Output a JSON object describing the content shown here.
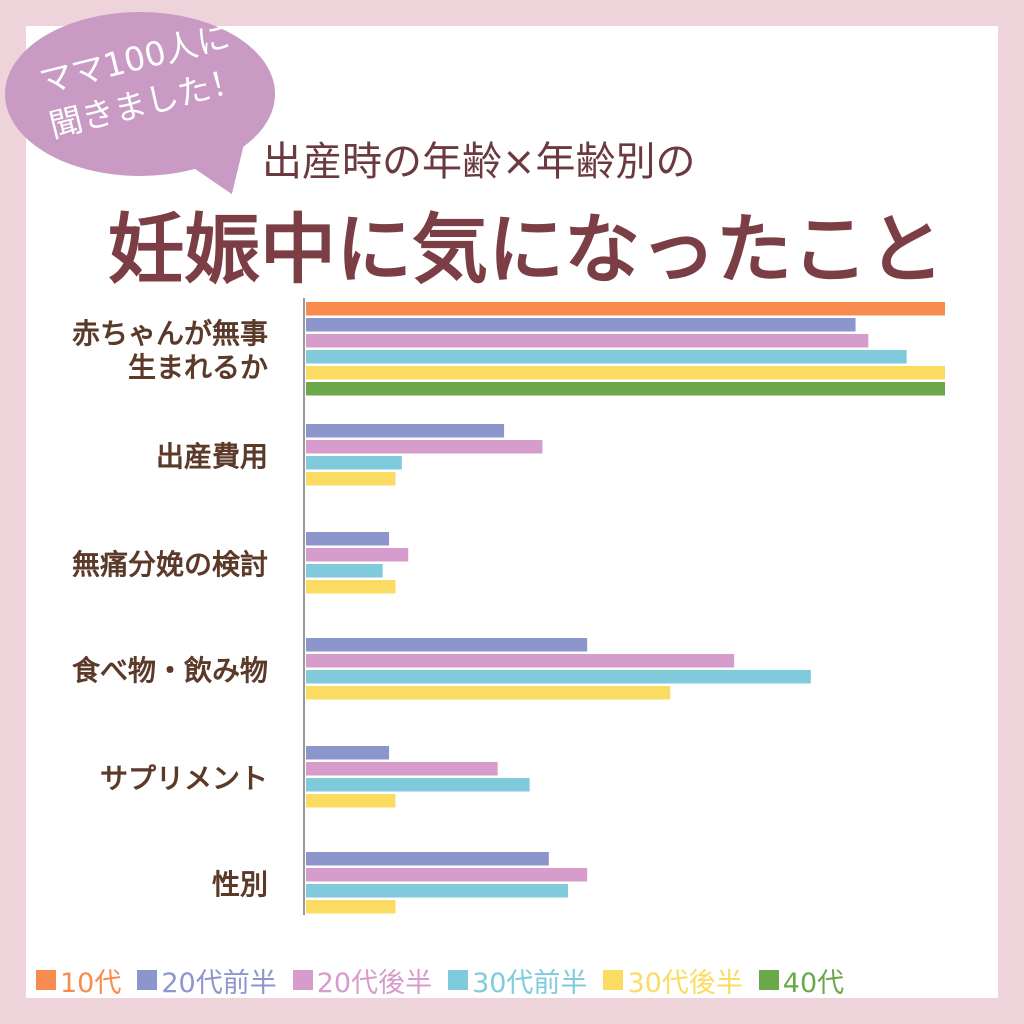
{
  "bubble": {
    "line1": "ママ100人に",
    "line2": "聞きました！",
    "color": "#c89ac4"
  },
  "header": {
    "subtitle": "出産時の年齢×年齢別の",
    "title": "妊娠中に気になったこと"
  },
  "chart_data": {
    "type": "bar",
    "orientation": "horizontal",
    "categories": [
      [
        "赤ちゃんが無事",
        "生まれるか"
      ],
      [
        "出産費用"
      ],
      [
        "無痛分娩の検討"
      ],
      [
        "食べ物・飲み物"
      ],
      [
        "サプリメント"
      ],
      [
        "性別"
      ]
    ],
    "series": [
      {
        "name": "10代",
        "color": "#f88b4e",
        "values": [
          100,
          0,
          0,
          0,
          0,
          0
        ]
      },
      {
        "name": "20代前半",
        "color": "#8c96cd",
        "values": [
          86,
          31,
          13,
          44,
          13,
          38
        ]
      },
      {
        "name": "20代後半",
        "color": "#d69ccb",
        "values": [
          88,
          37,
          16,
          67,
          30,
          44
        ]
      },
      {
        "name": "30代前半",
        "color": "#7fcbdc",
        "values": [
          94,
          15,
          12,
          79,
          35,
          41
        ]
      },
      {
        "name": "30代後半",
        "color": "#fbdc62",
        "values": [
          100,
          14,
          14,
          57,
          14,
          14
        ]
      },
      {
        "name": "40代",
        "color": "#6ba84a",
        "values": [
          100,
          0,
          0,
          0,
          0,
          0
        ]
      }
    ],
    "xlim": [
      0,
      100
    ],
    "grid": false,
    "legend_position": "bottom"
  }
}
